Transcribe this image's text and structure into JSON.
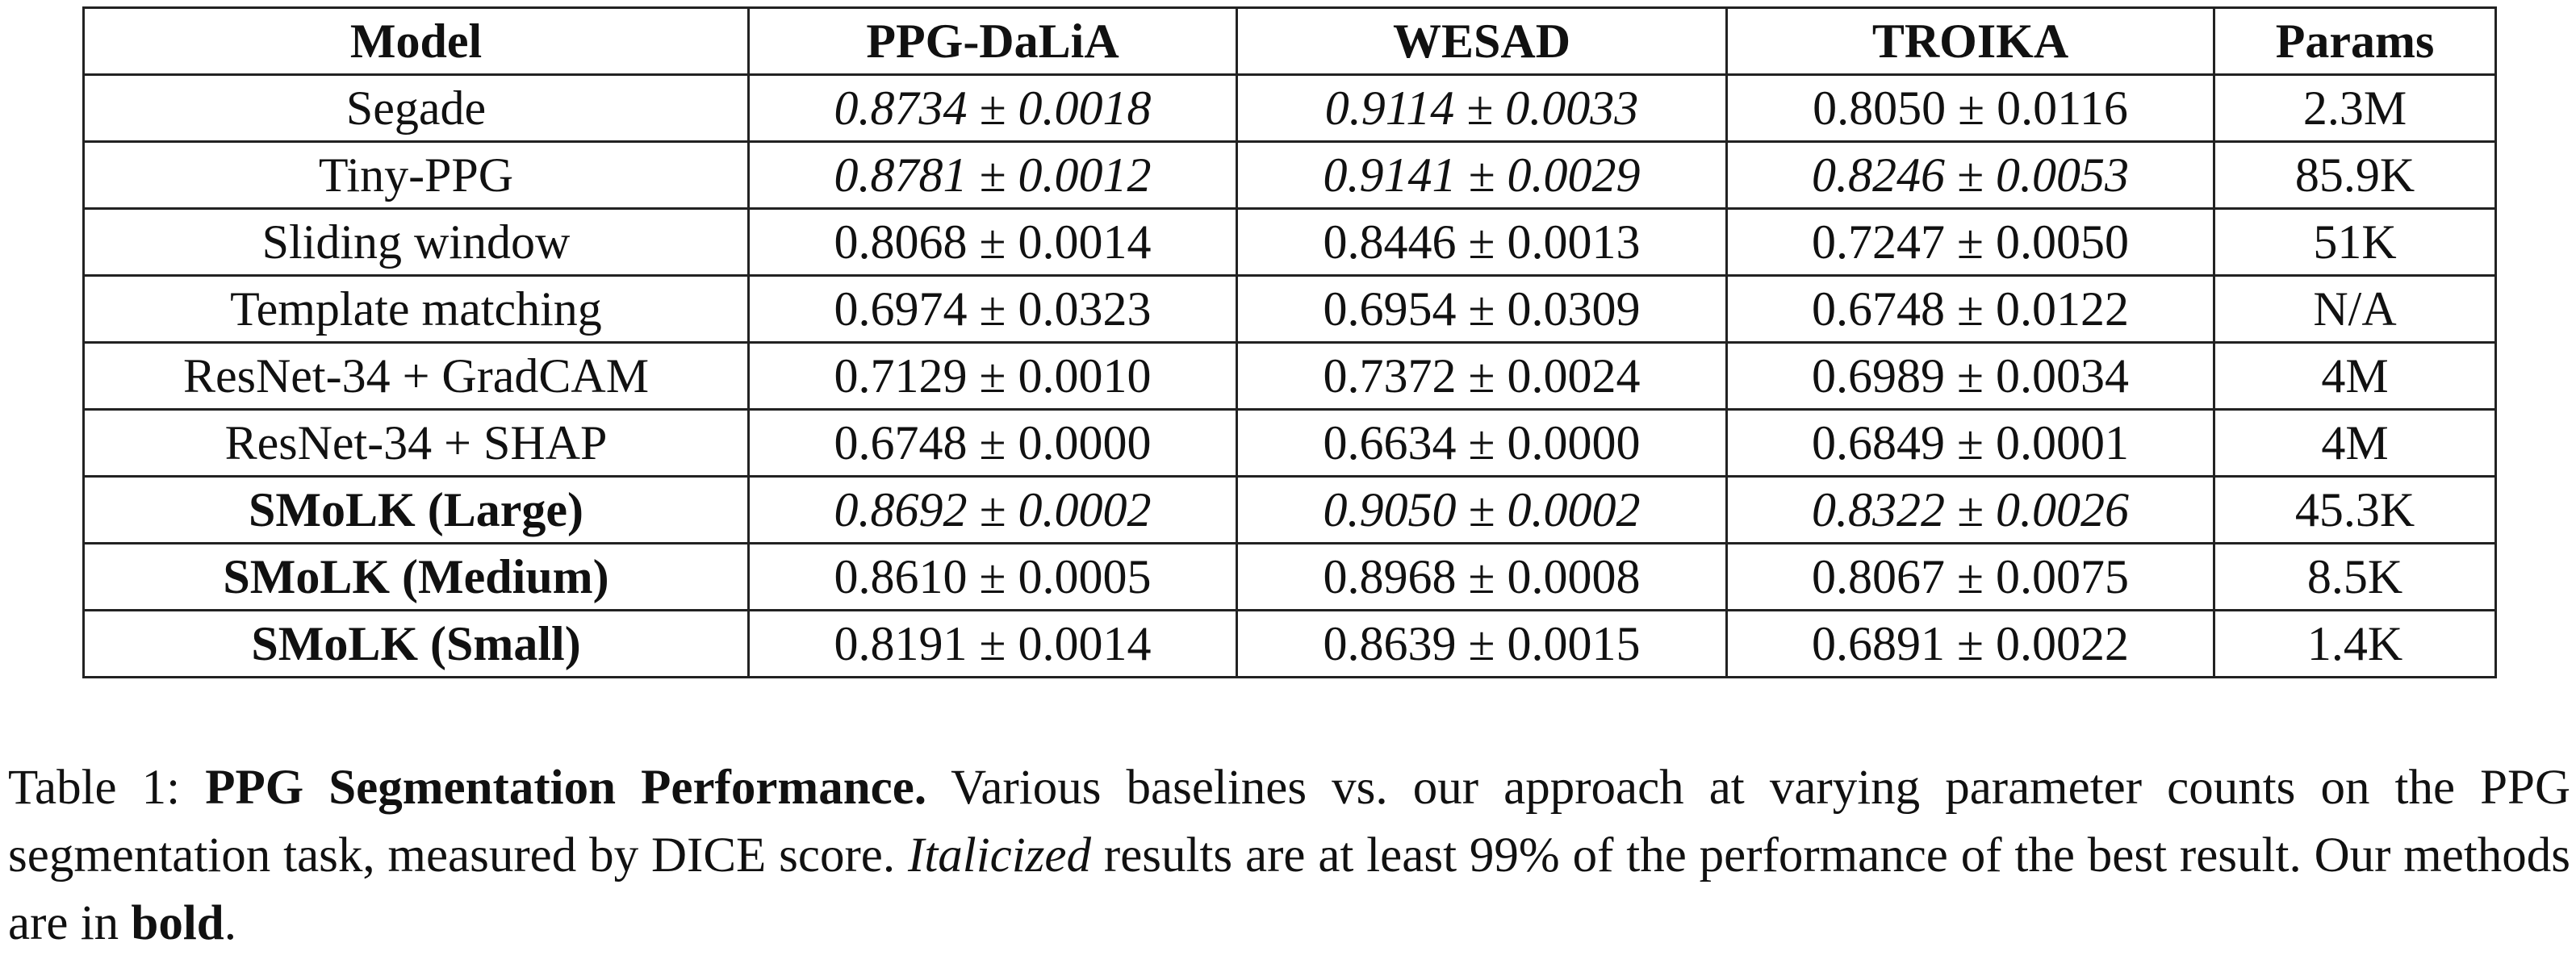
{
  "table": {
    "header": [
      "Model",
      "PPG-DaLiA",
      "WESAD",
      "TROIKA",
      "Params"
    ],
    "rows": [
      [
        "Segade",
        "0.8734 ± 0.0018",
        "0.9114 ± 0.0033",
        "0.8050 ± 0.0116",
        "2.3M"
      ],
      [
        "Tiny-PPG",
        "0.8781 ± 0.0012",
        "0.9141 ± 0.0029",
        "0.8246 ± 0.0053",
        "85.9K"
      ],
      [
        "Sliding window",
        "0.8068 ± 0.0014",
        "0.8446 ± 0.0013",
        "0.7247 ± 0.0050",
        "51K"
      ],
      [
        "Template matching",
        "0.6974 ± 0.0323",
        "0.6954 ± 0.0309",
        "0.6748 ± 0.0122",
        "N/A"
      ],
      [
        "ResNet-34 + GradCAM",
        "0.7129 ± 0.0010",
        "0.7372 ± 0.0024",
        "0.6989 ± 0.0034",
        "4M"
      ],
      [
        "ResNet-34 + SHAP",
        "0.6748 ± 0.0000",
        "0.6634 ± 0.0000",
        "0.6849 ± 0.0001",
        "4M"
      ],
      [
        "SMoLK (Large)",
        "0.8692 ± 0.0002",
        "0.9050 ± 0.0002",
        "0.8322 ± 0.0026",
        "45.3K"
      ],
      [
        "SMoLK (Medium)",
        "0.8610 ± 0.0005",
        "0.8968 ± 0.0008",
        "0.8067 ± 0.0075",
        "8.5K"
      ],
      [
        "SMoLK (Small)",
        "0.8191 ± 0.0014",
        "0.8639 ± 0.0015",
        "0.6891 ± 0.0022",
        "1.4K"
      ]
    ]
  },
  "caption": {
    "label": "Table 1:",
    "title": "PPG Segmentation Performance.",
    "text_1": "Various baselines vs. our approach at varying parameter counts on the PPG segmentation task, measured by DICE score.",
    "emphasis": "Italicized",
    "text_2": "results are at least 99% of the performance of the best result. Our methods are in",
    "strong": "bold",
    "text_3": "."
  }
}
